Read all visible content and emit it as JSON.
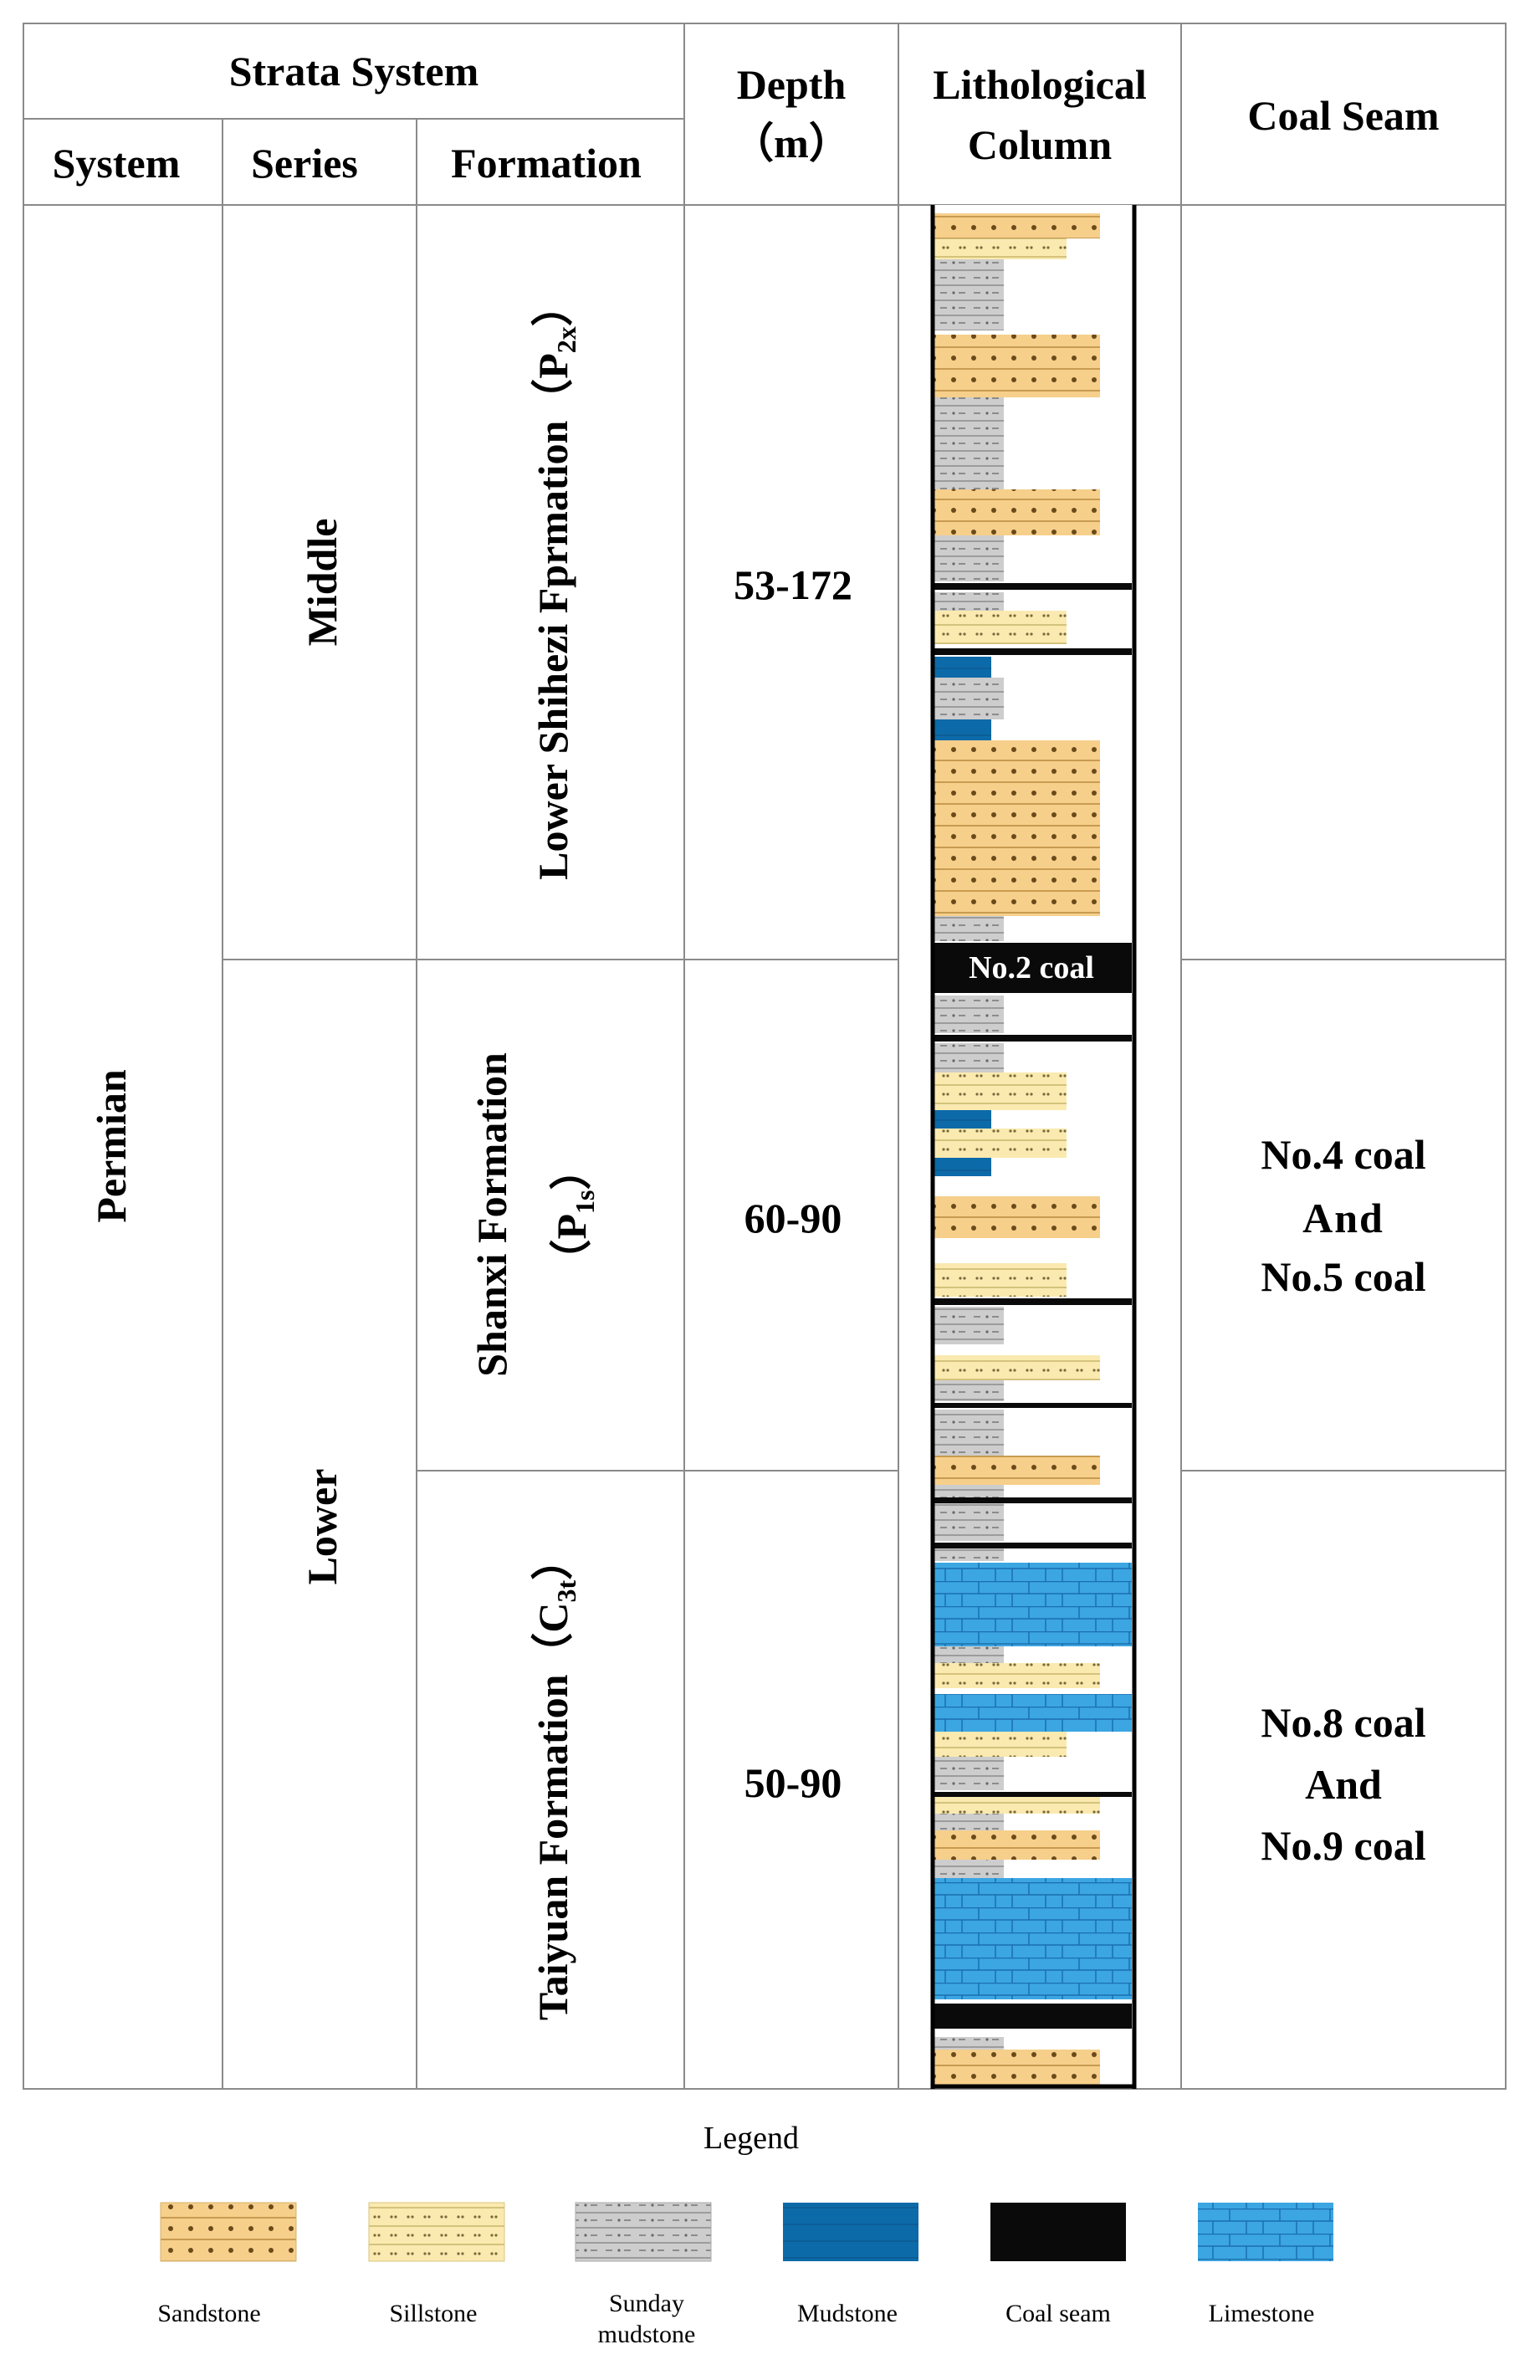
{
  "header": {
    "strata_system": "Strata System",
    "system": "System",
    "series": "Series",
    "formation": "Formation",
    "depth_line1": "Depth",
    "depth_line2": "（m）",
    "litho_line1": "Lithological",
    "litho_line2": "Column",
    "coal_seam": "Coal Seam"
  },
  "system_name": "Permian",
  "series": [
    "Middle",
    "Lower"
  ],
  "formations": [
    {
      "name": "Lower Shihezi Fprmation（P",
      "sub": "2x",
      "close": "）",
      "depth": "53-172"
    },
    {
      "name_line1": "Shanxi Formation",
      "name_line2": "（P",
      "sub": "1s",
      "close": "）",
      "depth": "60-90"
    },
    {
      "name": "Taiyuan Formation（C",
      "sub": "3t",
      "close": "）",
      "depth": "50-90"
    }
  ],
  "column_label": "No.2 coal",
  "coal_seams": [
    {
      "line1": "No.4 coal",
      "line2": "And",
      "line3": "No.5 coal"
    },
    {
      "line1": "No.8 coal",
      "line2": "And",
      "line3": "No.9 coal"
    }
  ],
  "legend": {
    "title": "Legend",
    "items": [
      {
        "label": "Sandstone"
      },
      {
        "label": "Sillstone"
      },
      {
        "label_line1": "Sunday",
        "label_line2": "mudstone"
      },
      {
        "label": "Mudstone"
      },
      {
        "label": "Coal seam"
      },
      {
        "label": "Limestone"
      }
    ]
  },
  "colors": {
    "sandstone": "#f6cf8b",
    "siltstone": "#faeab0",
    "sandy_mudstone": "#cdcdcd",
    "mudstone": "#0d6aa8",
    "coal": "#0a0a0a",
    "limestone": "#3ba6e2"
  }
}
